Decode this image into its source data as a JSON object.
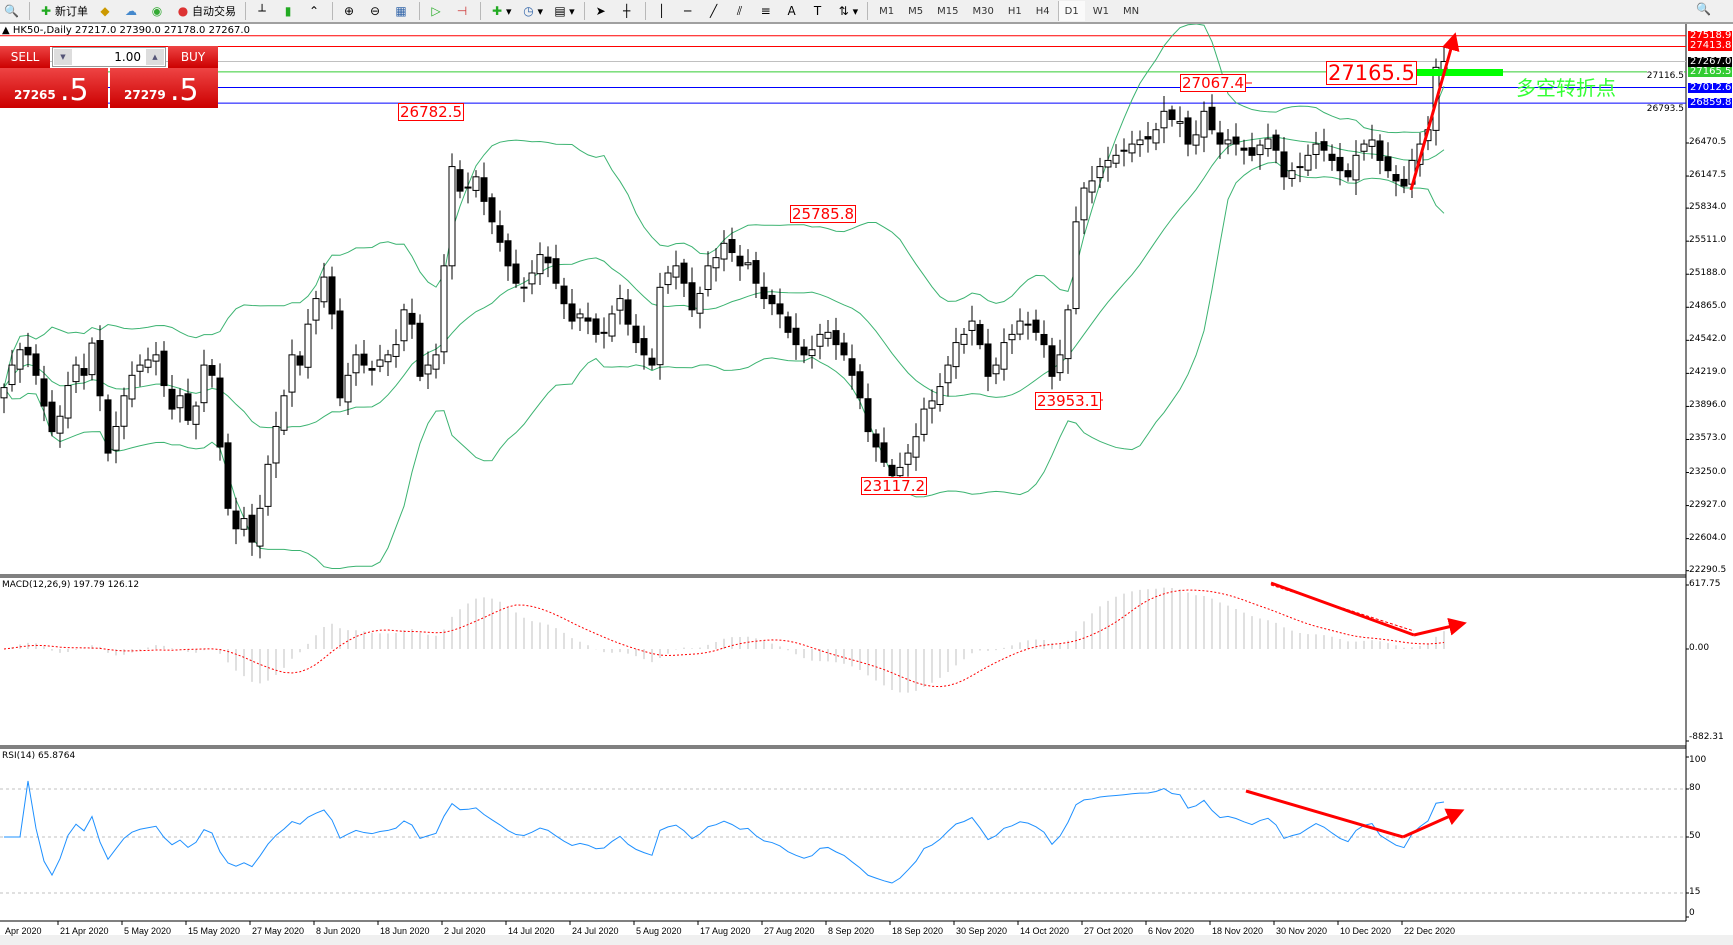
{
  "toolbar": {
    "new_order": "新订单",
    "auto_trading": "自动交易",
    "timeframes": [
      "M1",
      "M5",
      "M15",
      "M30",
      "H1",
      "H4",
      "D1",
      "W1",
      "MN"
    ],
    "active_timeframe": "D1"
  },
  "chart": {
    "symbol_title": "HK50-,Daily",
    "ohlc": "27217.0 27390.0 27178.0 27267.0"
  },
  "trade_panel": {
    "sell_label": "SELL",
    "buy_label": "BUY",
    "lot": "1.00",
    "sell_price_main": "27265",
    "sell_price_frac": ".5",
    "buy_price_main": "27279",
    "buy_price_frac": ".5"
  },
  "price_axis": [
    "26470.5",
    "26147.5",
    "25834.0",
    "25511.0",
    "25188.0",
    "24865.0",
    "24542.0",
    "24219.0",
    "23896.0",
    "23573.0",
    "23250.0",
    "22927.0",
    "22604.0",
    "22290.5"
  ],
  "price_axis_partial": [
    "27116.5",
    "26793.5"
  ],
  "level_tags": [
    {
      "value": "27518.9",
      "color": "#ff0000"
    },
    {
      "value": "27413.8",
      "color": "#ff0000"
    },
    {
      "value": "27267.0",
      "color": "#000000",
      "line": "#c0c0c0"
    },
    {
      "value": "27165.5",
      "color": "#33cc33"
    },
    {
      "value": "27012.6",
      "color": "#0000ff"
    },
    {
      "value": "26859.8",
      "color": "#0000ff"
    }
  ],
  "annotations": [
    "26782.5",
    "25785.8",
    "27067.4",
    "27165.5",
    "23953.1",
    "23117.2"
  ],
  "pivot_text": "多空转折点",
  "macd": {
    "label": "MACD(12,26,9) 197.79 126.12",
    "axis": [
      "617.75",
      "0.00",
      "-882.31"
    ]
  },
  "rsi": {
    "label": "RSI(14) 65.8764",
    "axis": [
      "100",
      "80",
      "50",
      "15",
      "0"
    ]
  },
  "dates": [
    "Apr 2020",
    "21 Apr 2020",
    "5 May 2020",
    "15 May 2020",
    "27 May 2020",
    "8 Jun 2020",
    "18 Jun 2020",
    "2 Jul 2020",
    "14 Jul 2020",
    "24 Jul 2020",
    "5 Aug 2020",
    "17 Aug 2020",
    "27 Aug 2020",
    "8 Sep 2020",
    "18 Sep 2020",
    "30 Sep 2020",
    "14 Oct 2020",
    "27 Oct 2020",
    "6 Nov 2020",
    "18 Nov 2020",
    "30 Nov 2020",
    "10 Dec 2020",
    "22 Dec 2020"
  ],
  "colors": {
    "bands": "#3cb371",
    "macd_hist": "#c0c0c0",
    "macd_signal": "#ff0000",
    "rsi": "#1e90ff",
    "arrow": "#ff0000"
  },
  "chart_data": {
    "type": "candlestick",
    "closes_approx": [
      24080,
      24300,
      24450,
      24400,
      24200,
      23900,
      23650,
      23800,
      24100,
      24300,
      24200,
      24515,
      24000,
      23440,
      23700,
      24000,
      24200,
      24300,
      24350,
      24400,
      24100,
      23870,
      24000,
      23760,
      23900,
      24300,
      24200,
      23500,
      22900,
      22700,
      22800,
      22570,
      22900,
      23330,
      23700,
      24000,
      24400,
      24300,
      24700,
      24950,
      25160,
      24800,
      23980,
      24200,
      24400,
      24300,
      24250,
      24350,
      24400,
      24500,
      24840,
      24700,
      24190,
      24300,
      24400,
      25270,
      26240,
      26000,
      26030,
      26140,
      25900,
      25700,
      25500,
      25270,
      25100,
      25060,
      25200,
      25380,
      25300,
      25100,
      24900,
      24730,
      24800,
      24730,
      24600,
      24620,
      24800,
      24950,
      24700,
      24520,
      24400,
      24300,
      25060,
      25200,
      25270,
      25100,
      24840,
      25000,
      25270,
      25350,
      25490,
      25400,
      25270,
      25300,
      25100,
      24950,
      24900,
      24800,
      24620,
      24500,
      24400,
      24450,
      24600,
      24620,
      24500,
      24400,
      24200,
      23980,
      23650,
      23500,
      23350,
      23220,
      23300,
      23440,
      23600,
      23870,
      23950,
      24090,
      24300,
      24520,
      24600,
      24730,
      24500,
      24190,
      24300,
      24520,
      24600,
      24730,
      24700,
      24620,
      24500,
      24190,
      24400,
      24840,
      25700,
      26030,
      26100,
      26240,
      26300,
      26350,
      26400,
      26460,
      26500,
      26510,
      26600,
      26780,
      26700,
      26680,
      26460,
      26550,
      26780,
      26600,
      26460,
      26500,
      26460,
      26400,
      26350,
      26450,
      26510,
      26400,
      26140,
      26200,
      26240,
      26350,
      26460,
      26400,
      26300,
      26200,
      26140,
      26350,
      26460,
      26500,
      26300,
      26200,
      26100,
      26050,
      26300,
      26460,
      26600,
      27210,
      27267
    ],
    "indicators": [
      "Bollinger Bands(20,2)",
      "MACD(12,26,9)",
      "RSI(14)"
    ]
  }
}
